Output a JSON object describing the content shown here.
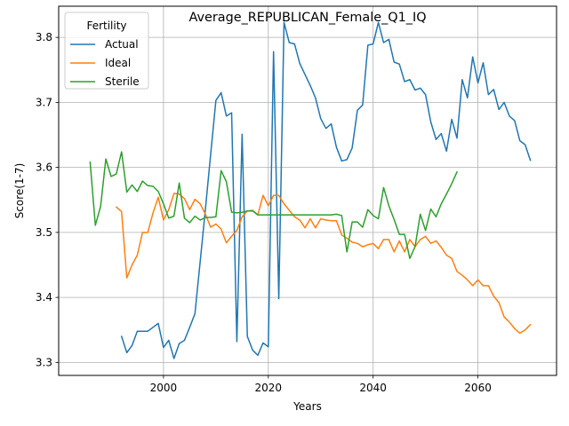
{
  "chart_data": {
    "type": "line",
    "title": "Average_REPUBLICAN_Female_Q1_IQ",
    "xlabel": "Years",
    "ylabel": "Score(1-7)",
    "xlim": [
      1980,
      2075
    ],
    "ylim": [
      3.28,
      3.848
    ],
    "xticks": [
      2000,
      2020,
      2040,
      2060
    ],
    "yticks": [
      3.3,
      3.4,
      3.5,
      3.6,
      3.7,
      3.8
    ],
    "grid": true,
    "legend": {
      "title": "Fertility",
      "placement": "top-left"
    },
    "series": [
      {
        "name": "Actual",
        "color": "#1f77b4",
        "x": [
          1992,
          1993,
          1994,
          1995,
          1996,
          1997,
          1998,
          1999,
          2000,
          2001,
          2002,
          2003,
          2004,
          2005,
          2006,
          2007,
          2008,
          2009,
          2010,
          2011,
          2012,
          2013,
          2014,
          2015,
          2016,
          2017,
          2018,
          2019,
          2020,
          2021,
          2022,
          2023,
          2024,
          2025,
          2026,
          2027,
          2028,
          2029,
          2030,
          2031,
          2032,
          2033,
          2034,
          2035,
          2036,
          2037,
          2038,
          2039,
          2040,
          2041,
          2042,
          2043,
          2044,
          2045,
          2046,
          2047,
          2048,
          2049,
          2050,
          2051,
          2052,
          2053,
          2054,
          2055,
          2056,
          2057,
          2058,
          2059,
          2060,
          2061,
          2062,
          2063,
          2064,
          2065,
          2066,
          2067,
          2068,
          2069,
          2070
        ],
        "values": [
          3.34,
          3.315,
          3.326,
          3.348,
          3.348,
          3.348,
          3.354,
          3.36,
          3.323,
          3.334,
          3.306,
          3.329,
          3.334,
          3.354,
          3.375,
          3.455,
          3.536,
          3.62,
          3.703,
          3.715,
          3.679,
          3.684,
          3.332,
          3.651,
          3.34,
          3.319,
          3.311,
          3.33,
          3.324,
          3.778,
          3.398,
          3.823,
          3.792,
          3.79,
          3.76,
          3.743,
          3.726,
          3.707,
          3.675,
          3.66,
          3.667,
          3.631,
          3.61,
          3.612,
          3.63,
          3.688,
          3.696,
          3.788,
          3.79,
          3.823,
          3.792,
          3.797,
          3.762,
          3.759,
          3.732,
          3.735,
          3.719,
          3.722,
          3.712,
          3.67,
          3.643,
          3.652,
          3.625,
          3.674,
          3.645,
          3.735,
          3.707,
          3.77,
          3.73,
          3.761,
          3.712,
          3.72,
          3.689,
          3.7,
          3.679,
          3.672,
          3.641,
          3.635,
          3.611
        ]
      },
      {
        "name": "Ideal",
        "color": "#ff7f0e",
        "x": [
          1991,
          1992,
          1993,
          1994,
          1995,
          1996,
          1997,
          1998,
          1999,
          2000,
          2001,
          2002,
          2003,
          2004,
          2005,
          2006,
          2007,
          2008,
          2009,
          2010,
          2011,
          2012,
          2013,
          2014,
          2015,
          2016,
          2017,
          2018,
          2019,
          2020,
          2021,
          2022,
          2023,
          2024,
          2025,
          2026,
          2027,
          2028,
          2029,
          2030,
          2031,
          2032,
          2033,
          2034,
          2035,
          2036,
          2037,
          2038,
          2039,
          2040,
          2041,
          2042,
          2043,
          2044,
          2045,
          2046,
          2047,
          2048,
          2049,
          2050,
          2051,
          2052,
          2053,
          2054,
          2055,
          2056,
          2057,
          2058,
          2059,
          2060,
          2061,
          2062,
          2063,
          2064,
          2065,
          2066,
          2067,
          2068,
          2069,
          2070
        ],
        "values": [
          3.539,
          3.532,
          3.43,
          3.45,
          3.465,
          3.5,
          3.5,
          3.53,
          3.554,
          3.519,
          3.535,
          3.56,
          3.559,
          3.552,
          3.535,
          3.551,
          3.544,
          3.528,
          3.508,
          3.513,
          3.505,
          3.484,
          3.494,
          3.503,
          3.524,
          3.533,
          3.534,
          3.527,
          3.557,
          3.541,
          3.557,
          3.557,
          3.544,
          3.534,
          3.524,
          3.519,
          3.507,
          3.521,
          3.507,
          3.521,
          3.519,
          3.518,
          3.518,
          3.496,
          3.491,
          3.485,
          3.483,
          3.478,
          3.481,
          3.483,
          3.475,
          3.489,
          3.489,
          3.47,
          3.487,
          3.47,
          3.489,
          3.478,
          3.489,
          3.494,
          3.483,
          3.487,
          3.477,
          3.465,
          3.46,
          3.44,
          3.434,
          3.427,
          3.418,
          3.427,
          3.418,
          3.418,
          3.402,
          3.392,
          3.37,
          3.362,
          3.352,
          3.345,
          3.35,
          3.358
        ]
      },
      {
        "name": "Sterile",
        "color": "#2ca02c",
        "x": [
          1986,
          1987,
          1988,
          1989,
          1990,
          1991,
          1992,
          1993,
          1994,
          1995,
          1996,
          1997,
          1998,
          1999,
          2000,
          2001,
          2002,
          2003,
          2004,
          2005,
          2006,
          2007,
          2008,
          2009,
          2010,
          2011,
          2012,
          2013,
          2014,
          2015,
          2016,
          2017,
          2018,
          2019,
          2020,
          2021,
          2022,
          2023,
          2024,
          2025,
          2026,
          2027,
          2028,
          2029,
          2030,
          2031,
          2032,
          2033,
          2034,
          2035,
          2036,
          2037,
          2038,
          2039,
          2040,
          2041,
          2042,
          2043,
          2044,
          2045,
          2046,
          2047,
          2048,
          2049,
          2050,
          2051,
          2052,
          2053,
          2054,
          2055,
          2056
        ],
        "values": [
          3.608,
          3.511,
          3.54,
          3.613,
          3.586,
          3.59,
          3.624,
          3.562,
          3.573,
          3.563,
          3.579,
          3.572,
          3.571,
          3.563,
          3.544,
          3.522,
          3.525,
          3.576,
          3.522,
          3.515,
          3.525,
          3.519,
          3.523,
          3.523,
          3.524,
          3.595,
          3.578,
          3.531,
          3.53,
          3.531,
          3.533,
          3.533,
          3.527,
          3.527,
          3.527,
          3.527,
          3.527,
          3.527,
          3.527,
          3.527,
          3.527,
          3.527,
          3.527,
          3.527,
          3.527,
          3.527,
          3.527,
          3.528,
          3.526,
          3.47,
          3.516,
          3.516,
          3.508,
          3.535,
          3.526,
          3.521,
          3.569,
          3.541,
          3.52,
          3.497,
          3.497,
          3.46,
          3.478,
          3.528,
          3.503,
          3.536,
          3.524,
          3.544,
          3.559,
          3.575,
          3.593
        ]
      }
    ]
  }
}
